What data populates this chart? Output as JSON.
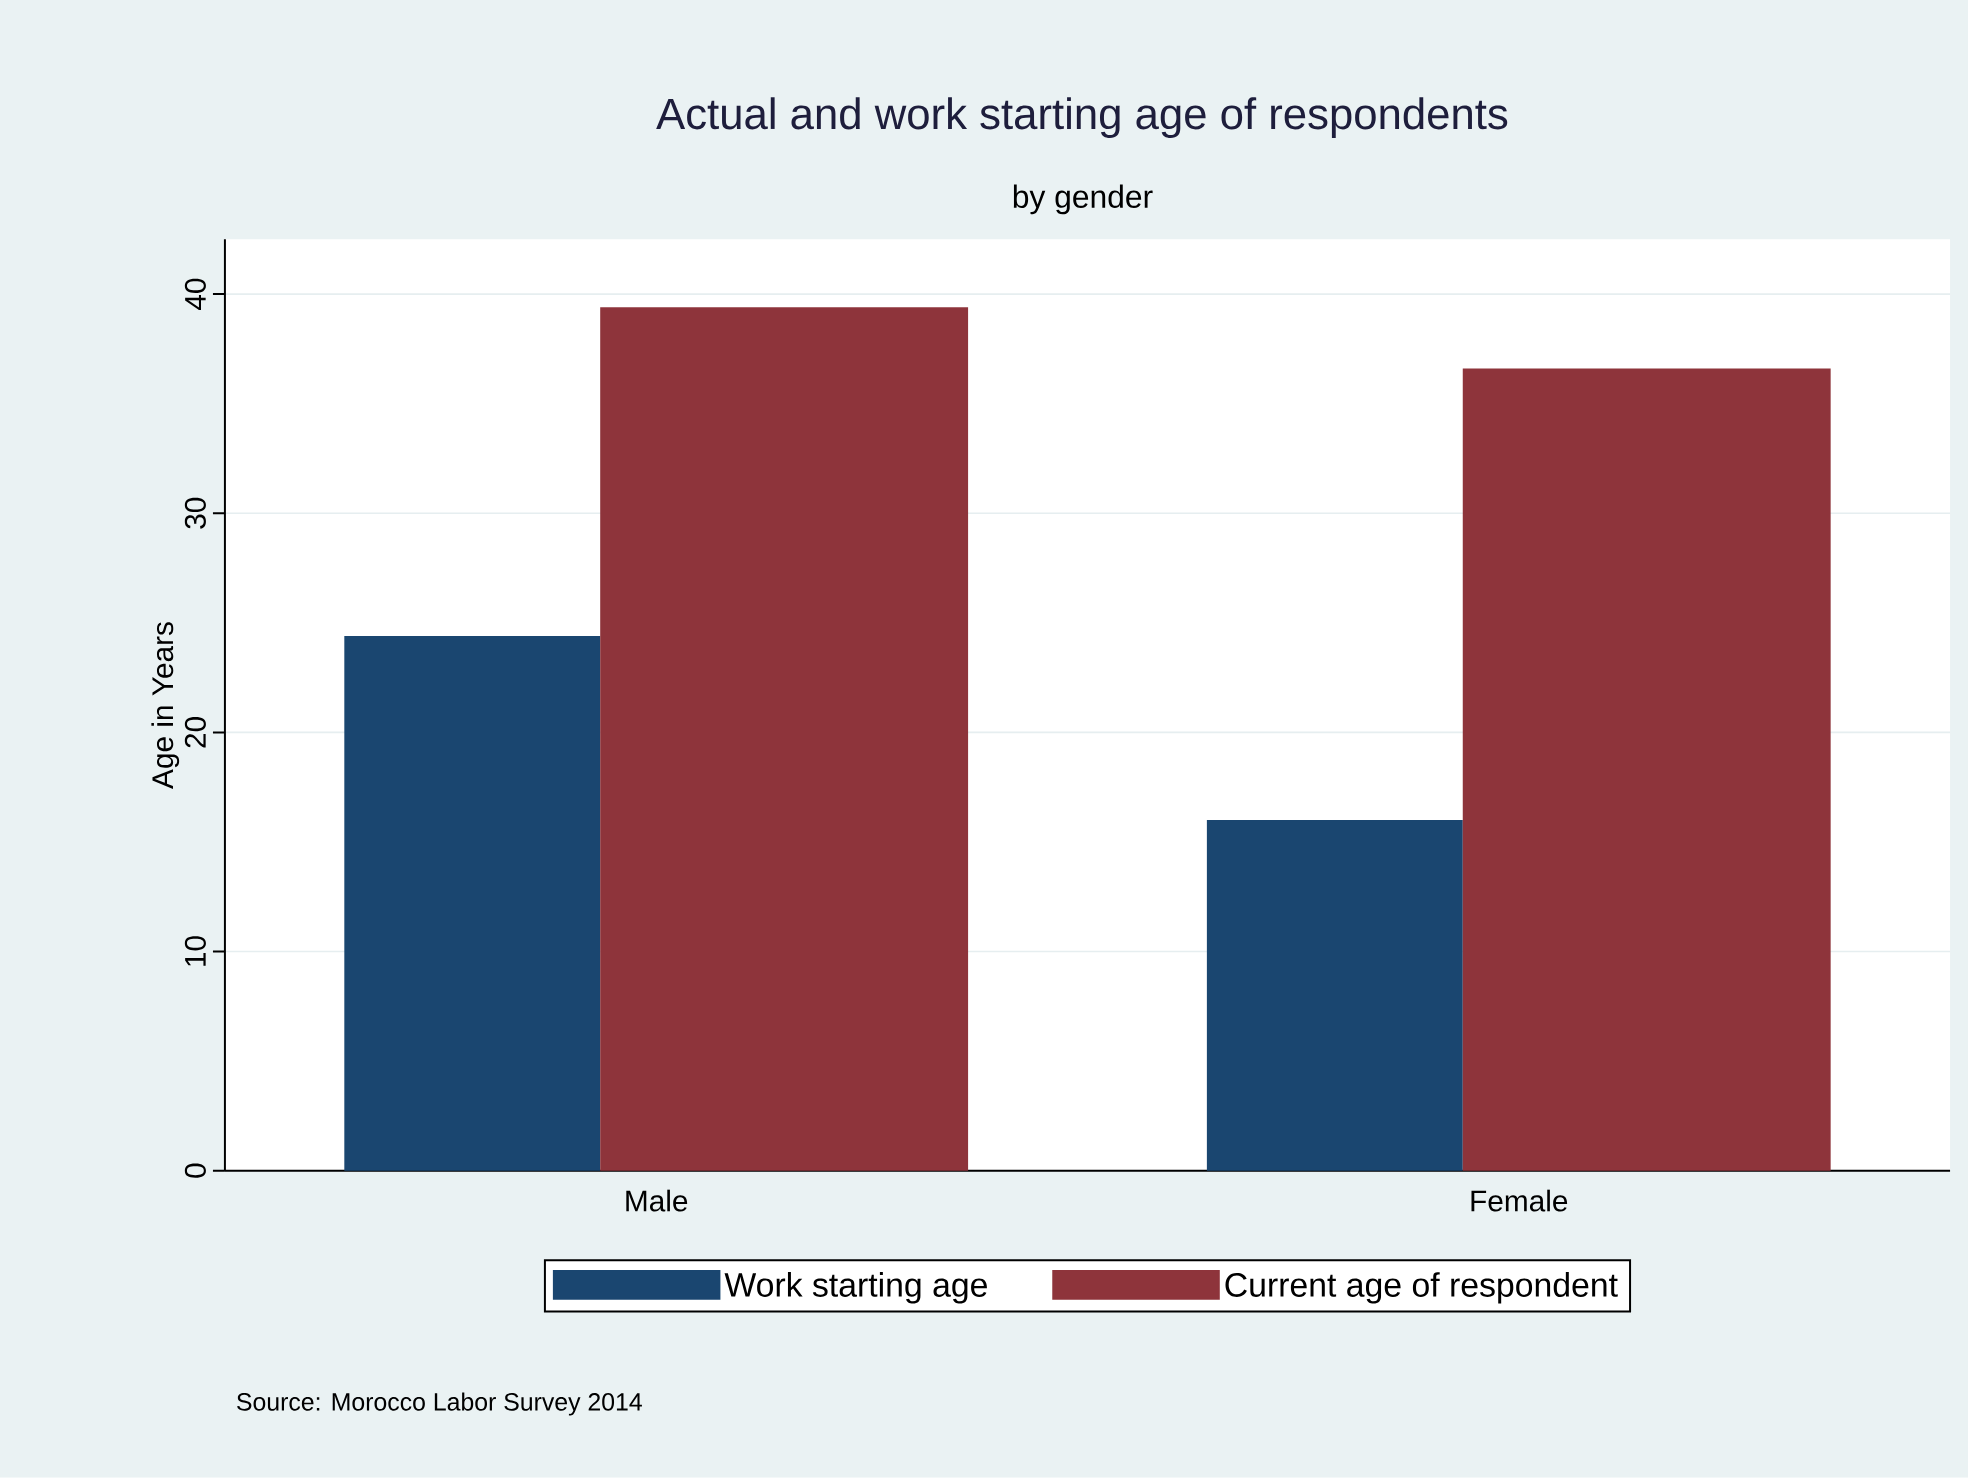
{
  "chart_data": {
    "type": "bar",
    "title": "Actual and work starting age of respondents",
    "subtitle": "by gender",
    "ylabel": "Age in Years",
    "categories": [
      "Male",
      "Female"
    ],
    "series": [
      {
        "name": "Work starting age",
        "color": "#1a4670",
        "values": [
          24.4,
          16.0
        ]
      },
      {
        "name": "Current age of respondent",
        "color": "#8e343b",
        "values": [
          39.4,
          36.6
        ]
      }
    ],
    "ylim": [
      0,
      42.5
    ],
    "yticks": [
      0,
      10,
      20,
      30,
      40
    ],
    "grid": "y",
    "legend": "bottom",
    "annotations": [
      "Source:  Morocco Labor Survey 2014"
    ]
  }
}
